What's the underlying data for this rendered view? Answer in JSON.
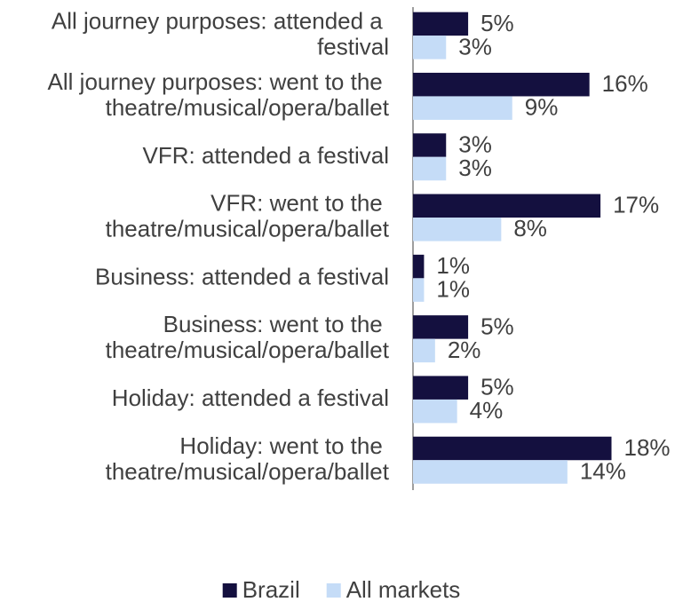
{
  "chart_data": {
    "type": "hbar",
    "categories": [
      "All journey purposes: attended a festival",
      "All journey purposes: went to the theatre/musical/opera/ballet",
      "VFR: attended a festival",
      "VFR: went to the theatre/musical/opera/ballet",
      "Business: attended a festival",
      "Business: went to the theatre/musical/opera/ballet",
      "Holiday: attended a festival",
      "Holiday: went to the theatre/musical/opera/ballet"
    ],
    "series": [
      {
        "name": "Brazil",
        "color": "#14103f",
        "values": [
          5,
          16,
          3,
          17,
          1,
          5,
          5,
          18
        ],
        "value_labels": [
          "5%",
          "16%",
          "3%",
          "17%",
          "1%",
          "5%",
          "5%",
          "18%"
        ]
      },
      {
        "name": "All markets",
        "color": "#c5dcf7",
        "values": [
          3,
          9,
          3,
          8,
          1,
          2,
          4,
          14
        ],
        "value_labels": [
          "3%",
          "9%",
          "3%",
          "8%",
          "1%",
          "2%",
          "4%",
          "14%"
        ]
      }
    ],
    "xlim": [
      0,
      24
    ],
    "legend": "bottom"
  }
}
